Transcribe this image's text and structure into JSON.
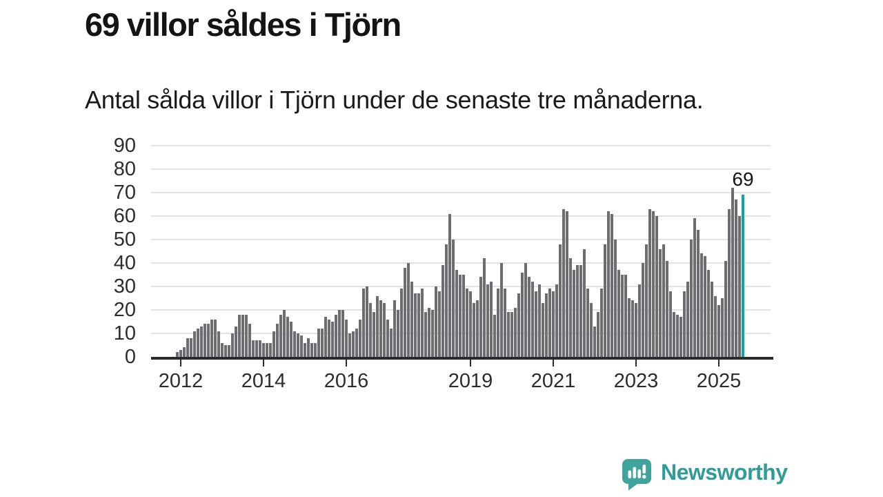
{
  "chart_data": {
    "type": "bar",
    "title": "69 villor såldes i Tjörn",
    "subtitle": "Antal sålda villor i Tjörn under de senaste tre månaderna.",
    "series_start": "2011-12",
    "values": [
      2,
      3,
      4,
      8,
      8,
      11,
      12,
      13,
      14,
      14,
      16,
      16,
      11,
      6,
      5,
      5,
      10,
      13,
      18,
      18,
      18,
      14,
      7,
      7,
      7,
      6,
      6,
      6,
      11,
      14,
      18,
      20,
      17,
      15,
      11,
      10,
      9,
      6,
      8,
      6,
      6,
      12,
      12,
      17,
      16,
      15,
      18,
      20,
      20,
      16,
      10,
      11,
      12,
      16,
      29,
      30,
      23,
      19,
      26,
      24,
      23,
      16,
      12,
      24,
      20,
      29,
      38,
      40,
      32,
      27,
      27,
      29,
      19,
      21,
      20,
      30,
      28,
      39,
      48,
      61,
      50,
      37,
      35,
      35,
      29,
      28,
      23,
      24,
      34,
      42,
      31,
      32,
      18,
      29,
      40,
      29,
      19,
      19,
      21,
      27,
      36,
      40,
      34,
      32,
      28,
      31,
      23,
      27,
      29,
      28,
      31,
      48,
      63,
      62,
      42,
      37,
      39,
      39,
      46,
      29,
      23,
      13,
      19,
      29,
      48,
      62,
      61,
      50,
      37,
      35,
      35,
      25,
      24,
      23,
      31,
      40,
      48,
      63,
      62,
      60,
      46,
      48,
      41,
      28,
      19,
      18,
      17,
      28,
      32,
      50,
      59,
      54,
      44,
      43,
      37,
      32,
      26,
      22,
      25,
      41,
      63,
      72,
      67,
      60,
      69
    ],
    "highlight_last": true,
    "annotation": {
      "text": "69"
    },
    "y_ticks": [
      0,
      10,
      20,
      30,
      40,
      50,
      60,
      70,
      80,
      90
    ],
    "ylim": [
      0,
      90
    ],
    "x_tick_years": [
      2012,
      2014,
      2016,
      2019,
      2021,
      2023,
      2025
    ],
    "x_tick_labels": [
      "2012",
      "2014",
      "2016",
      "2019",
      "2021",
      "2023",
      "2025"
    ],
    "grid": true,
    "legend": "none"
  },
  "footer": {
    "brand": "Newsworthy",
    "logo_icon": "bar-chart-speech-bubble-icon"
  },
  "colors": {
    "bar": "#6c6c71",
    "highlight": "#0ca6a6",
    "grid": "#e2e2e2",
    "axis": "#2b2b2b",
    "text": "#141414",
    "ticktext": "#2d2d2d",
    "brand": "#2f9c95",
    "logo_bg": "#40a49d"
  }
}
